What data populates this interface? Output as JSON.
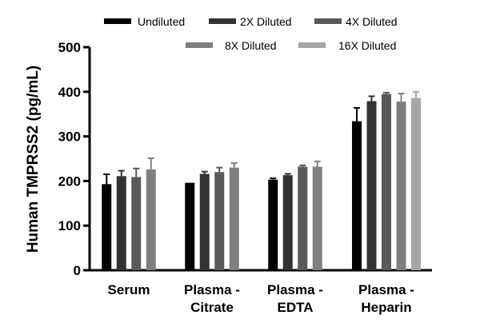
{
  "chart_data": {
    "type": "bar",
    "title": "",
    "xlabel": "",
    "ylabel": "Human TMPRSS2 (pg/mL)",
    "ylim": [
      0,
      500
    ],
    "yticks": [
      "0",
      "100",
      "200",
      "300",
      "400",
      "500"
    ],
    "categories": [
      [
        "Serum"
      ],
      [
        "Plasma -",
        "Citrate"
      ],
      [
        "Plasma -",
        "EDTA"
      ],
      [
        "Plasma -",
        "Heparin"
      ]
    ],
    "series": [
      {
        "name": "Undiluted",
        "color": "#000000",
        "values": [
          193,
          196,
          203,
          334
        ],
        "errors": [
          22,
          0,
          3,
          30
        ]
      },
      {
        "name": "2X Diluted",
        "color": "#333333",
        "values": [
          211,
          216,
          213,
          379
        ],
        "errors": [
          12,
          5,
          3,
          11
        ]
      },
      {
        "name": "4X Diluted",
        "color": "#595959",
        "values": [
          209,
          220,
          232,
          395
        ],
        "errors": [
          19,
          10,
          3,
          3
        ]
      },
      {
        "name": "8X Diluted",
        "color": "#7f7f7f",
        "values": [
          226,
          230,
          232,
          378
        ],
        "errors": [
          25,
          10,
          12,
          18
        ]
      },
      {
        "name": "16X Diluted",
        "color": "#a6a6a6",
        "values": [
          null,
          null,
          null,
          386
        ],
        "errors": [
          null,
          null,
          null,
          14
        ]
      }
    ],
    "legend_position": "top",
    "grid": false
  }
}
